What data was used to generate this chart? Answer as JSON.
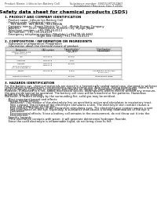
{
  "bg_color": "#ffffff",
  "header_left": "Product Name: Lithium Ion Battery Cell",
  "header_right1": "Substance number: 5SB151KT252A67",
  "header_right2": "Established / Revision: Dec.7.2010",
  "main_title": "Safety data sheet for chemical products (SDS)",
  "section1_title": "1. PRODUCT AND COMPANY IDENTIFICATION",
  "s1_lines": [
    "  · Product name: Lithium Ion Battery Cell",
    "  · Product code: Cylindrical-type cell",
    "       SV1-8650U,  SV1-8650L,  SV1-8650A",
    "  · Company name:    Sanyo Electric Co., Ltd.,  Mobile Energy Company",
    "  · Address:          2221,  Kamikaizen, Sumoto City, Hyogo, Japan",
    "  · Telephone number:   +81-799-24-4111",
    "  · Fax number:  +81-799-24-4129",
    "  · Emergency telephone number: (Weekday) +81-799-20-2662",
    "                                    (Night and holiday) +81-799-24-4121"
  ],
  "section2_title": "2. COMPOSITION / INFORMATION ON INGREDIENTS",
  "s2_subtitle": "  · Substance or preparation: Preparation",
  "s2_table_header": "  · Information about the chemical nature of product:",
  "table_cols": [
    "Component",
    "CAS number",
    "Concentration /\nConcentration range",
    "Classification and\nhazard labeling"
  ],
  "table_rows": [
    [
      "Lithium cobalt oxide\n(LiMnCoO₂(s))",
      "-",
      "30-40%",
      "-"
    ],
    [
      "Iron",
      "7439-89-6",
      "15-25%",
      "-"
    ],
    [
      "Aluminum",
      "7429-90-5",
      "2-5%",
      "-"
    ],
    [
      "Graphite\n(Role of graphite*1)\n(All film graphite*1)",
      "7782-42-5\n7782-44-2",
      "10-25%",
      "-"
    ],
    [
      "Copper",
      "7440-50-8",
      "5-15%",
      "Sensitization of the skin\ngroup No.2"
    ],
    [
      "Organic electrolyte",
      "-",
      "10-25%",
      "Inflammable liquid"
    ]
  ],
  "section3_title": "3. HAZARDS IDENTIFICATION",
  "s3_para1": "For the battery can, chemical materials are stored in a hermetically sealed metal case, designed to withstand\ntemperatures and pressures-concentrations during normal use. As a result, during normal-use, there is no\nphysical danger of ignition or aspiration and there is no danger of hazardous material leakage.\nHowever, if exposed to a fire, added mechanical shocks, decomposed, whiten electro without any measure,\nthe gas inside cannot be operated. The battery cell case will be breached or fire-patterns. Hazardous\nmaterials may be released.\nMoreover, if heated strongly by the surrounding fire, solid gas may be emitted.",
  "s3_bullet1": "  · Most important hazard and effects:",
  "s3_human": "    Human health effects:",
  "s3_human_lines": [
    "      Inhalation: The release of the electrolyte has an anesthetic action and stimulates in respiratory tract.",
    "      Skin contact: The release of the electrolyte stimulates a skin. The electrolyte skin contact causes a",
    "      sore and stimulation on the skin.",
    "      Eye contact: The release of the electrolyte stimulates eyes. The electrolyte eye contact causes a sore",
    "      and stimulation on the eye. Especially, a substance that causes a strong inflammation of the eye is",
    "      contained.",
    "      Environmental effects: Since a battery cell remains in the environment, do not throw out it into the",
    "      environment."
  ],
  "s3_specific": "  · Specific hazards:",
  "s3_specific_lines": [
    "    If the electrolyte contacts with water, it will generate detrimental hydrogen fluoride.",
    "    Since the used electrolyte is inflammable liquid, do not bring close to fire."
  ]
}
